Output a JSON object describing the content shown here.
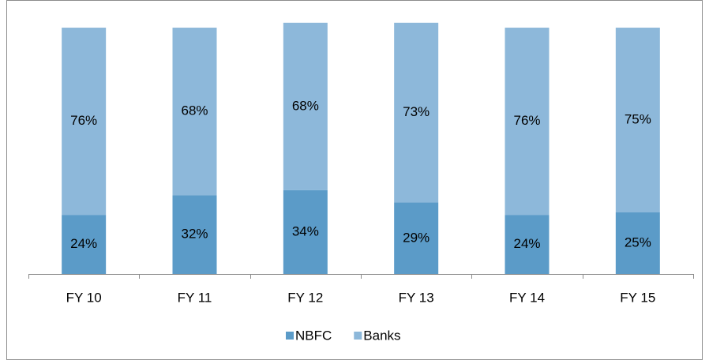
{
  "chart_data": {
    "type": "stacked_bar",
    "categories": [
      "FY 10",
      "FY 11",
      "FY 12",
      "FY 13",
      "FY 14",
      "FY 15"
    ],
    "series": [
      {
        "name": "NBFC",
        "color": "#5b9bc8",
        "values": [
          24,
          32,
          34,
          29,
          24,
          25
        ],
        "value_labels": [
          "24%",
          "32%",
          "34%",
          "29%",
          "24%",
          "25%"
        ]
      },
      {
        "name": "Banks",
        "color": "#8db8da",
        "values": [
          76,
          68,
          68,
          73,
          76,
          75
        ],
        "value_labels": [
          "76%",
          "68%",
          "68%",
          "73%",
          "76%",
          "75%"
        ]
      }
    ],
    "ylim": [
      0,
      102
    ],
    "legend": "bottom"
  }
}
